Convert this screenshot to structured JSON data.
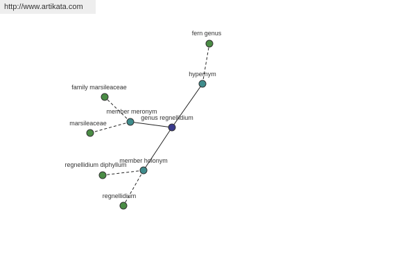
{
  "header": {
    "url": "http://www.artikata.com"
  },
  "nodes": [
    {
      "label": "genus regnellidium"
    },
    {
      "label": "hypernym"
    },
    {
      "label": "fern genus"
    },
    {
      "label": "member meronym"
    },
    {
      "label": "family marsileaceae"
    },
    {
      "label": "marsileaceae"
    },
    {
      "label": "member holonym"
    },
    {
      "label": "regnellidium diphyllum"
    },
    {
      "label": "regnellidium"
    }
  ]
}
